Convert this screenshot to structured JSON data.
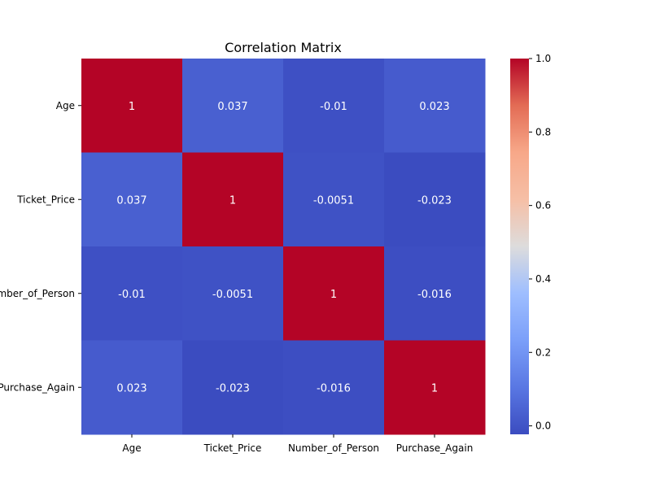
{
  "chart_data": {
    "type": "heatmap",
    "title": "Correlation Matrix",
    "row_labels": [
      "Age",
      "Ticket_Price",
      "Number_of_Person",
      "Purchase_Again"
    ],
    "col_labels": [
      "Age",
      "Ticket_Price",
      "Number_of_Person",
      "Purchase_Again"
    ],
    "values": [
      [
        1,
        0.037,
        -0.01,
        0.023
      ],
      [
        0.037,
        1,
        -0.0051,
        -0.023
      ],
      [
        -0.01,
        -0.0051,
        1,
        -0.016
      ],
      [
        0.023,
        -0.023,
        -0.016,
        1
      ]
    ],
    "cell_labels": [
      [
        "1",
        "0.037",
        "-0.01",
        "0.023"
      ],
      [
        "0.037",
        "1",
        "-0.0051",
        "-0.023"
      ],
      [
        "-0.01",
        "-0.0051",
        "1",
        "-0.016"
      ],
      [
        "0.023",
        "-0.023",
        "-0.016",
        "1"
      ]
    ],
    "colormap": "coolwarm",
    "colorbar": {
      "range": [
        -0.023,
        1.0
      ],
      "ticks": [
        0.0,
        0.2,
        0.4,
        0.6,
        0.8,
        1.0
      ],
      "tick_labels": [
        "0.0",
        "0.2",
        "0.4",
        "0.6",
        "0.8",
        "1.0"
      ]
    },
    "grid": false
  }
}
